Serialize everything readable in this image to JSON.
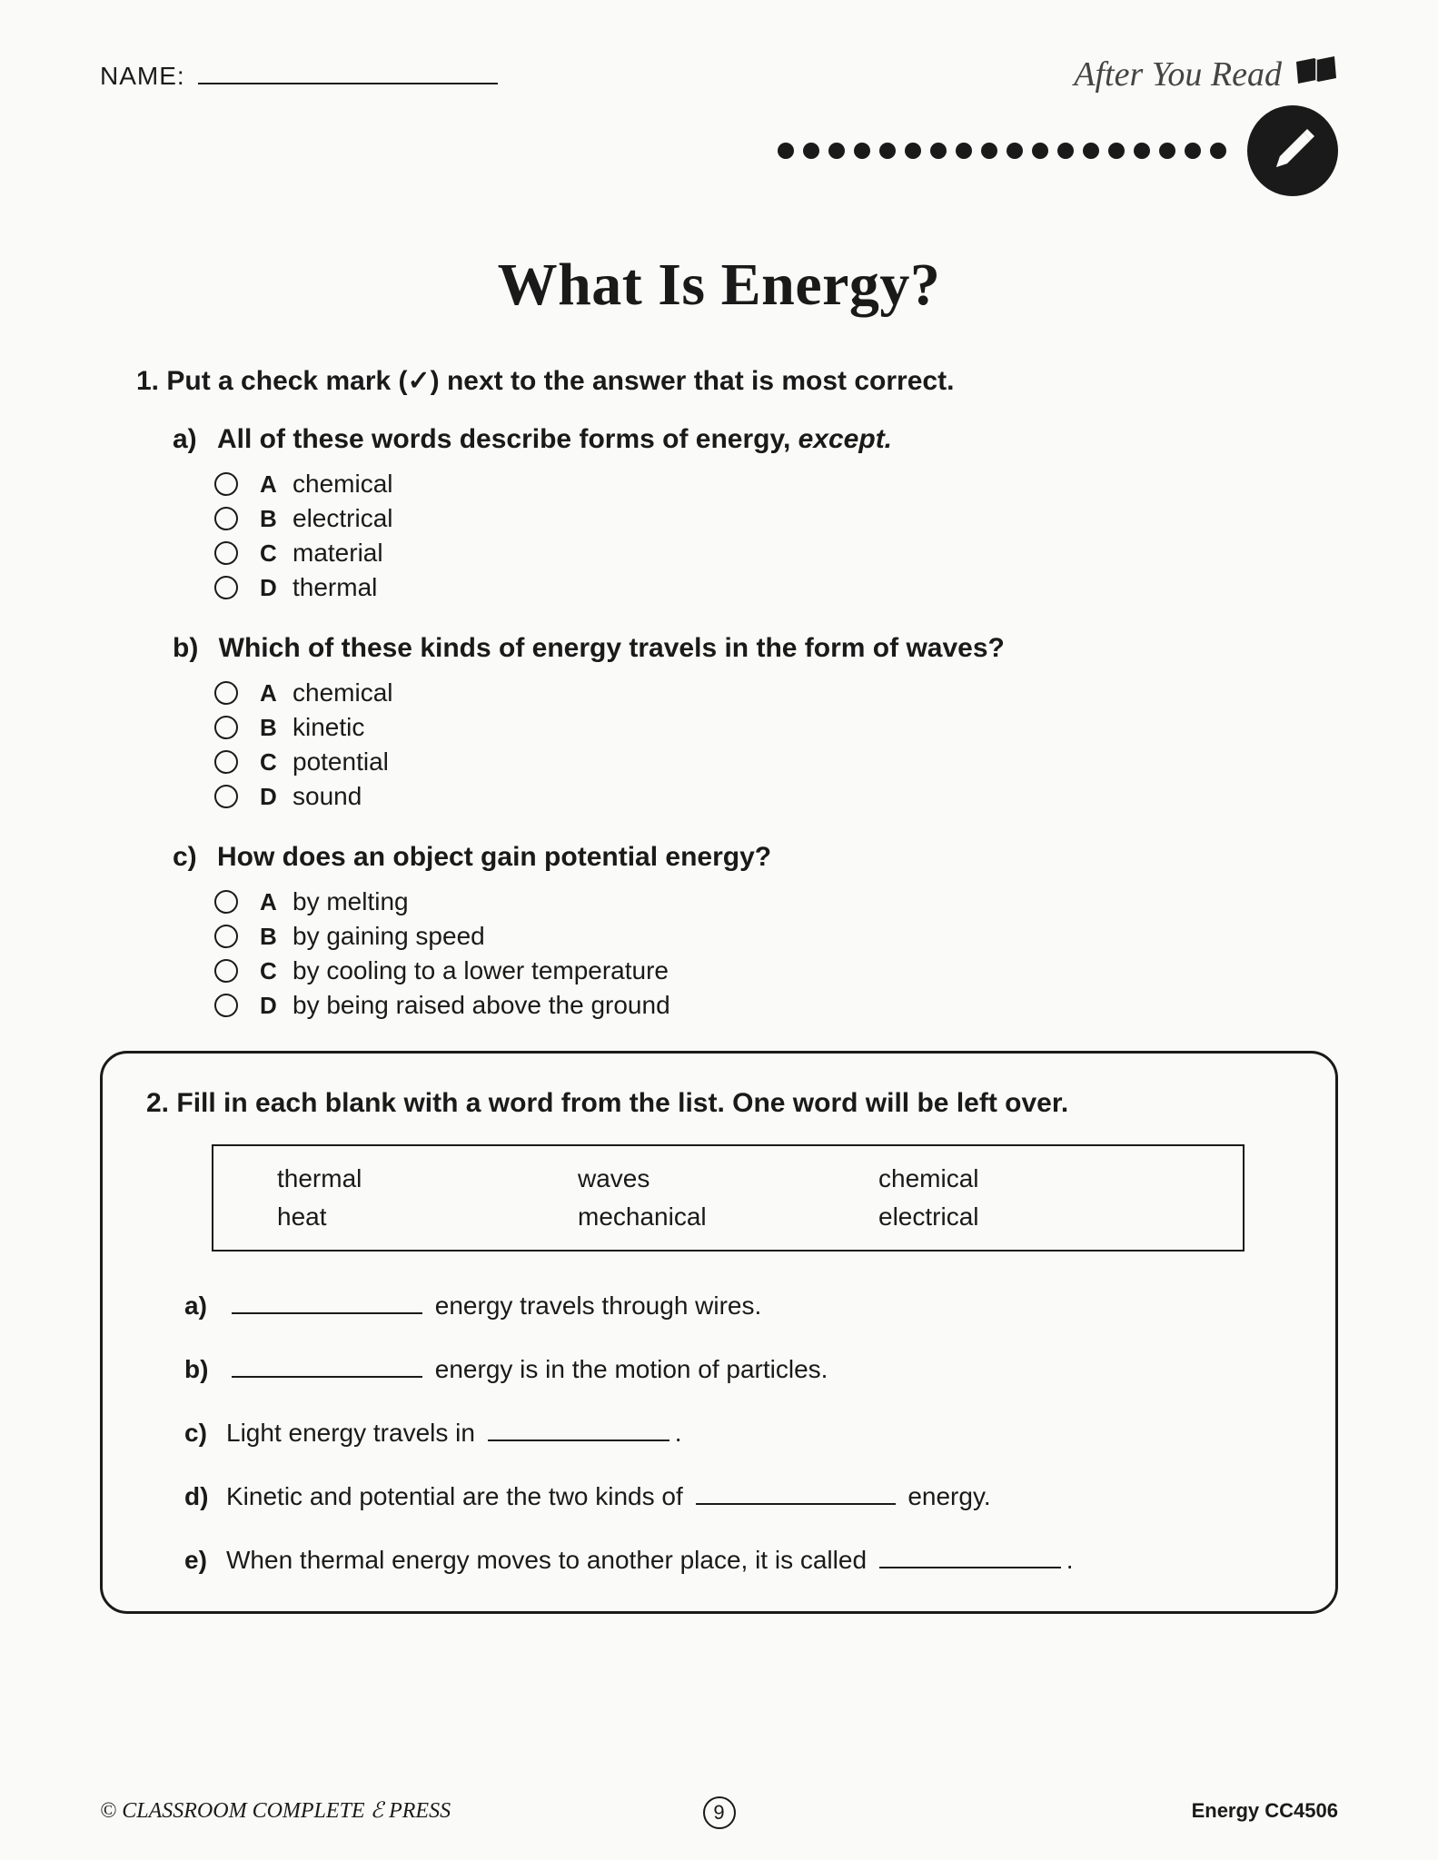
{
  "header": {
    "name_label": "NAME:",
    "section_label": "After You Read"
  },
  "title": "What Is Energy?",
  "q1": {
    "number": "1.",
    "instruction": "Put a check mark (✓) next to the answer that is most correct.",
    "subs": [
      {
        "letter": "a)",
        "prompt_bold": "All of these words describe forms of energy, ",
        "prompt_italic": "except.",
        "options": [
          {
            "l": "A",
            "t": "chemical"
          },
          {
            "l": "B",
            "t": "electrical"
          },
          {
            "l": "C",
            "t": "material"
          },
          {
            "l": "D",
            "t": "thermal"
          }
        ]
      },
      {
        "letter": "b)",
        "prompt_bold": "Which of these kinds of energy travels in the form of waves?",
        "prompt_italic": "",
        "options": [
          {
            "l": "A",
            "t": "chemical"
          },
          {
            "l": "B",
            "t": "kinetic"
          },
          {
            "l": "C",
            "t": "potential"
          },
          {
            "l": "D",
            "t": "sound"
          }
        ]
      },
      {
        "letter": "c)",
        "prompt_bold": "How does an object gain potential energy?",
        "prompt_italic": "",
        "options": [
          {
            "l": "A",
            "t": "by melting"
          },
          {
            "l": "B",
            "t": "by gaining speed"
          },
          {
            "l": "C",
            "t": "by cooling to a lower temperature"
          },
          {
            "l": "D",
            "t": "by being raised above the ground"
          }
        ]
      }
    ]
  },
  "q2": {
    "number": "2.",
    "instruction": "Fill in each blank with a word from the list. One word will be left over.",
    "wordbank": {
      "r1": [
        "thermal",
        "waves",
        "chemical"
      ],
      "r2": [
        "heat",
        "mechanical",
        "electrical"
      ]
    },
    "items": [
      {
        "l": "a)",
        "pre": "",
        "post": " energy travels through wires.",
        "blank_w": 210,
        "leading": true
      },
      {
        "l": "b)",
        "pre": "",
        "post": " energy is in the motion of particles.",
        "blank_w": 210,
        "leading": true
      },
      {
        "l": "c)",
        "pre": "Light energy travels in ",
        "post": ".",
        "blank_w": 200,
        "leading": false
      },
      {
        "l": "d)",
        "pre": "Kinetic and potential are the two kinds of ",
        "post": " energy.",
        "blank_w": 220,
        "leading": false
      },
      {
        "l": "e)",
        "pre": "When thermal energy moves to another place, it is called ",
        "post": ".",
        "blank_w": 200,
        "leading": false
      }
    ]
  },
  "footer": {
    "publisher": "© CLASSROOM COMPLETE ℰ PRESS",
    "page_number": "9",
    "right": "Energy  CC4506"
  },
  "style": {
    "page_bg": "#fafaf8",
    "ink": "#1a1a1a"
  }
}
